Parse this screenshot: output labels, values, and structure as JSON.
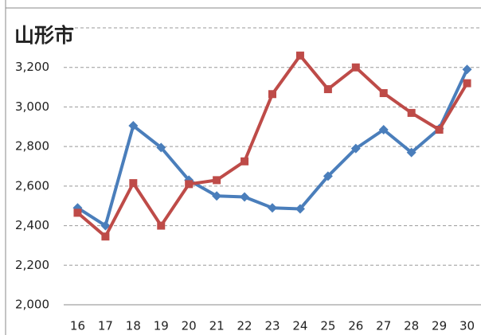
{
  "chart_data": {
    "type": "line",
    "title": "山形市",
    "categories": [
      "16",
      "17",
      "18",
      "19",
      "20",
      "21",
      "22",
      "23",
      "24",
      "25",
      "26",
      "27",
      "28",
      "29",
      "30"
    ],
    "series": [
      {
        "color": "#4a7ebb",
        "marker": "diamond",
        "values": [
          2490,
          2400,
          2905,
          2795,
          2630,
          2550,
          2545,
          2490,
          2485,
          2650,
          2790,
          2885,
          2770,
          2890,
          3190
        ]
      },
      {
        "color": "#be4b48",
        "marker": "square",
        "values": [
          2465,
          2345,
          2615,
          2400,
          2610,
          2630,
          2725,
          3065,
          3260,
          3090,
          3200,
          3070,
          2970,
          2885,
          3120
        ]
      }
    ],
    "ylim": [
      2000,
      3400
    ],
    "yticks": [
      {
        "value": 2000,
        "label": "2,000"
      },
      {
        "value": 2200,
        "label": "2,200"
      },
      {
        "value": 2400,
        "label": "2,400"
      },
      {
        "value": 2600,
        "label": "2,600"
      },
      {
        "value": 2800,
        "label": "2,800"
      },
      {
        "value": 3000,
        "label": "3,000"
      },
      {
        "value": 3200,
        "label": "3,200"
      }
    ],
    "grid": true
  }
}
